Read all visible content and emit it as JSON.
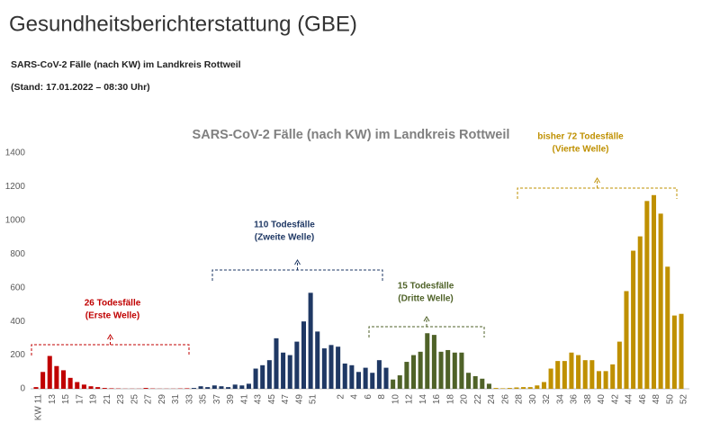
{
  "header": {
    "title": "Gesundheitsberichterstattung (GBE)",
    "subtitle": "SARS-CoV-2 Fälle (nach KW) im Landkreis Rottweil",
    "date": "(Stand: 17.01.2022 – 08:30 Uhr)"
  },
  "chart_data": {
    "type": "bar",
    "title": "SARS-CoV-2 Fälle (nach KW) im Landkreis Rottweil",
    "categories": [
      "KW 11",
      null,
      "13",
      null,
      "15",
      null,
      "17",
      null,
      "19",
      null,
      "21",
      null,
      "23",
      null,
      "25",
      null,
      "27",
      null,
      "29",
      null,
      "31",
      null,
      "33",
      null,
      "35",
      null,
      "37",
      null,
      "39",
      null,
      "41",
      null,
      "43",
      null,
      "45",
      null,
      "47",
      null,
      "49",
      null,
      "51",
      null,
      null,
      null,
      "2",
      null,
      "4",
      null,
      "6",
      null,
      "8",
      null,
      "10",
      null,
      "12",
      null,
      "14",
      null,
      "16",
      null,
      "18",
      null,
      "20",
      null,
      "22",
      null,
      "24",
      null,
      "26",
      null,
      "28",
      null,
      "30",
      null,
      "32",
      null,
      "34",
      null,
      "36",
      null,
      "38",
      null,
      "40",
      null,
      "42",
      null,
      "44",
      null,
      "46",
      null,
      "48",
      null,
      "50",
      null,
      "52"
    ],
    "values": [
      10,
      100,
      195,
      135,
      110,
      65,
      40,
      25,
      15,
      10,
      5,
      3,
      2,
      1,
      1,
      1,
      5,
      2,
      1,
      1,
      1,
      2,
      3,
      5,
      15,
      10,
      20,
      15,
      10,
      25,
      20,
      30,
      120,
      140,
      170,
      300,
      215,
      200,
      280,
      400,
      570,
      340,
      240,
      260,
      250,
      150,
      140,
      100,
      125,
      95,
      170,
      125,
      55,
      80,
      160,
      200,
      220,
      330,
      320,
      220,
      230,
      215,
      215,
      95,
      75,
      60,
      30,
      5,
      3,
      5,
      8,
      10,
      10,
      20,
      40,
      120,
      165,
      165,
      215,
      200,
      170,
      170,
      105,
      105,
      145,
      280,
      580,
      820,
      905,
      1115,
      1150,
      1040,
      725,
      435,
      445
    ],
    "colors": [
      "#c00000",
      "#c00000",
      "#c00000",
      "#c00000",
      "#c00000",
      "#c00000",
      "#c00000",
      "#c00000",
      "#c00000",
      "#c00000",
      "#c00000",
      "#c00000",
      "#c00000",
      "#c00000",
      "#c00000",
      "#c00000",
      "#c00000",
      "#c00000",
      "#c00000",
      "#c00000",
      "#c00000",
      "#c00000",
      "#c00000",
      "#1f3864",
      "#1f3864",
      "#1f3864",
      "#1f3864",
      "#1f3864",
      "#1f3864",
      "#1f3864",
      "#1f3864",
      "#1f3864",
      "#1f3864",
      "#1f3864",
      "#1f3864",
      "#1f3864",
      "#1f3864",
      "#1f3864",
      "#1f3864",
      "#1f3864",
      "#1f3864",
      "#1f3864",
      "#1f3864",
      "#1f3864",
      "#1f3864",
      "#1f3864",
      "#1f3864",
      "#1f3864",
      "#1f3864",
      "#1f3864",
      "#1f3864",
      "#1f3864",
      "#4f6228",
      "#4f6228",
      "#4f6228",
      "#4f6228",
      "#4f6228",
      "#4f6228",
      "#4f6228",
      "#4f6228",
      "#4f6228",
      "#4f6228",
      "#4f6228",
      "#4f6228",
      "#4f6228",
      "#4f6228",
      "#4f6228",
      "#bf9000",
      "#bf9000",
      "#bf9000",
      "#bf9000",
      "#bf9000",
      "#bf9000",
      "#bf9000",
      "#bf9000",
      "#bf9000",
      "#bf9000",
      "#bf9000",
      "#bf9000",
      "#bf9000",
      "#bf9000",
      "#bf9000",
      "#bf9000",
      "#bf9000",
      "#bf9000",
      "#bf9000",
      "#bf9000",
      "#bf9000",
      "#bf9000",
      "#bf9000",
      "#bf9000",
      "#bf9000",
      "#bf9000",
      "#bf9000",
      "#bf9000"
    ],
    "ylim": [
      0,
      1400
    ],
    "yticks": [
      0,
      200,
      400,
      600,
      800,
      1000,
      1200,
      1400
    ],
    "grid": false,
    "annotations": [
      {
        "lines": [
          "26 Todesfälle",
          "(Erste Welle)"
        ],
        "color": "#c00000"
      },
      {
        "lines": [
          "110 Todesfälle",
          "(Zweite Welle)"
        ],
        "color": "#1f3864"
      },
      {
        "lines": [
          "15 Todesfälle",
          "(Dritte Welle)"
        ],
        "color": "#4f6228"
      },
      {
        "lines": [
          "bisher 72 Todesfälle",
          "(Vierte Welle)"
        ],
        "color": "#bf9000"
      }
    ]
  }
}
